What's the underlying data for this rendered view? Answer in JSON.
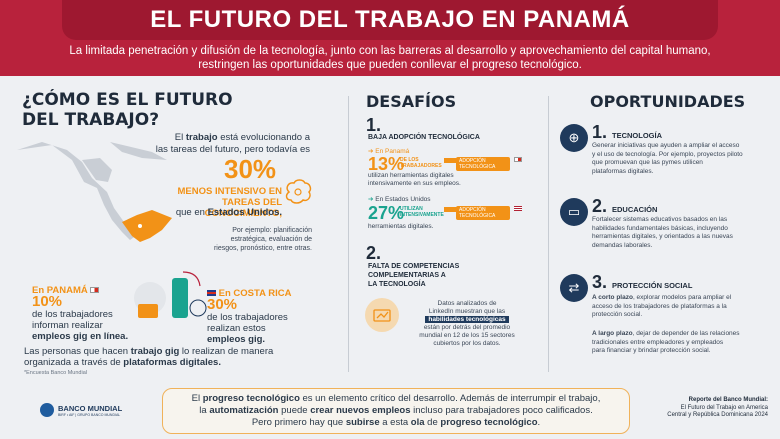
{
  "header": {
    "title": "EL FUTURO DEL TRABAJO EN PANAMÁ",
    "subtitle_line1": "La limitada penetración y difusión de la tecnología, junto con las barreras al desarrollo y aprovechamiento del capital humano,",
    "subtitle_line2": "restringen las oportunidades que pueden conllevar el progreso tecnológico."
  },
  "left": {
    "heading_line1": "¿CÓMO ES EL FUTURO",
    "heading_line2": "DEL TRABAJO?",
    "intro_p1": "El ",
    "intro_bold": "trabajo",
    "intro_p2": " está evolucionando a",
    "intro_line2": "las tareas del futuro, pero todavía es",
    "percent": "30%",
    "percent_desc_line1": "MENOS INTENSIVO EN",
    "percent_desc_line2": "TAREAS DEL CONOCIMIENTO,",
    "compare_pre": "que en ",
    "compare_bold": "Estados Unidos.",
    "example_line1": "Por ejemplo: planificación",
    "example_line2": "estratégica, evaluación de",
    "example_line3": "riesgos, pronóstico, entre otras.",
    "panama_label": "En PANAMÁ",
    "panama_pct": "10%",
    "panama_l2": "de los trabajadores",
    "panama_l3": "informan realizar",
    "panama_l4": "empleos gig en línea.",
    "cr_label": "En COSTA RICA",
    "cr_pct": "30%",
    "cr_l2": "de los trabajadores",
    "cr_l3": "realizan estos",
    "cr_l4": "empleos gig.",
    "gig_line1_a": "Las personas que hacen ",
    "gig_line1_b": "trabajo gig",
    "gig_line1_c": " lo realizan de manera",
    "gig_line2_a": "organizada a través de ",
    "gig_line2_b": "plataformas digitales.",
    "source": "*Encuesta Banco Mundial"
  },
  "challenges": {
    "heading": "DESAFÍOS",
    "c1_num": "1.",
    "c1_title": "BAJA ADOPCIÓN TECNOLÓGICA",
    "c1_pan_label": "En Panamá",
    "c1_pan_pct": "13%",
    "c1_pan_pct_desc1": "DE LOS",
    "c1_pan_pct_desc2": "TRABAJADORES",
    "c1_tag": "ADOPCIÓN TECNOLÓGICA",
    "c1_pan_l1": "utilizan herramientas digitales",
    "c1_pan_l2": "intensivamente en sus  empleos.",
    "c1_us_label": "En Estados Unidos",
    "c1_us_pct": "27%",
    "c1_us_desc1": "UTILIZAN",
    "c1_us_desc2": "INTENSIVAMENTE",
    "c1_us_l1": "herramientas digitales.",
    "pan_share": 0.13,
    "us_share": 0.27,
    "c2_num": "2.",
    "c2_title_l1": "FALTA DE COMPETENCIAS",
    "c2_title_l2": "COMPLEMENTARIAS A",
    "c2_title_l3": "LA TECNOLOGÍA",
    "c2_l1": "Datos analizados de",
    "c2_l2": "LinkedIn muestran que las",
    "c2_hl": "habilidades tecnológicas",
    "c2_l3": "están por detrás del promedio",
    "c2_l4": "mundial en 12 de los 15 sectores",
    "c2_l5": "cubiertos por los datos."
  },
  "opportunities": {
    "heading": "OPORTUNIDADES",
    "o1_num": "1.",
    "o1_title": "TECNOLOGÍA",
    "o1_l1": "Generar iniciativas que ayuden a ampliar el acceso",
    "o1_l2": "y el uso de tecnología. Por ejemplo, proyectos piloto",
    "o1_l3": "que promuevan que las pymes utilicen",
    "o1_l4": "plataformas digitales.",
    "o2_num": "2.",
    "o2_title": "EDUCACIÓN",
    "o2_l1": "Fortalecer sistemas educativos basados en las",
    "o2_l2": "habilidades fundamentales básicas, incluyendo",
    "o2_l3": "herramientas digitales, y orientados a las nuevas",
    "o2_l4": "demandas laborales.",
    "o3_num": "3.",
    "o3_title": "PROTECCIÓN SOCIAL",
    "o3_a_bold": "A corto plazo",
    "o3_a_l1": ", explorar modelos para ampliar el",
    "o3_a_l2": "acceso de los trabajadores de plataformas a la",
    "o3_a_l3": "protección social.",
    "o3_b_bold": "A largo plazo",
    "o3_b_l1": ", dejar de depender de las relaciones",
    "o3_b_l2": "tradicionales entre empleadores y empleados",
    "o3_b_l3": "para financiar y brindar protección social."
  },
  "footer": {
    "line1_a": "El ",
    "line1_b": "progreso tecnológico",
    "line1_c": " es un elemento crítico del desarrollo. Además de interrumpir el trabajo,",
    "line2_a": "la ",
    "line2_b": "automatización",
    "line2_c": " puede ",
    "line2_d": "crear nuevos empleos",
    "line2_e": " incluso para trabajadores poco calificados.",
    "line3_a": "Pero primero hay que ",
    "line3_b": "subirse",
    "line3_c": " a esta ",
    "line3_d": "ola",
    "line3_e": " de ",
    "line3_f": "progreso tecnológico",
    "line3_g": ".",
    "logo_text": "BANCO MUNDIAL",
    "logo_sub": "BIRF • AIF | GRUPO BANCO MUNDIAL",
    "report_title": "Reporte del Banco Mundial:",
    "report_l1": "El Futuro del Trabajo en America",
    "report_l2": "Central y República Dominicana 2024"
  },
  "colors": {
    "red": "#b8223c",
    "orange": "#f29217",
    "navy": "#1f3a5c"
  }
}
